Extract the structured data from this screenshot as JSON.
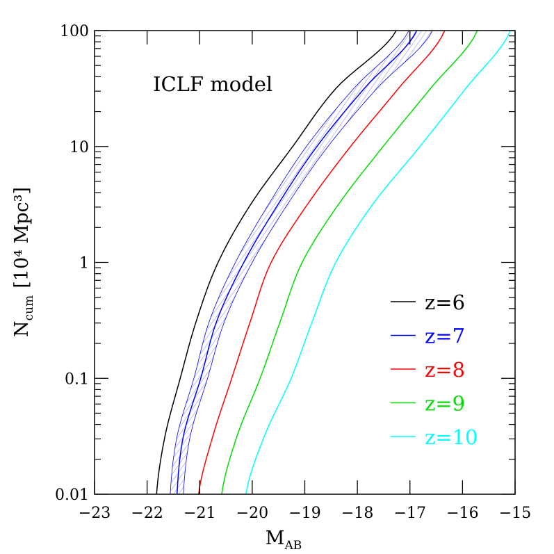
{
  "chart_data": {
    "type": "line",
    "title": "",
    "annotation": "ICLF model",
    "xlabel": "M",
    "xlabel_sub": "AB",
    "ylabel": "N",
    "ylabel_sub": "cum",
    "ylabel_units": "[10⁴ Mpc³]",
    "xlim": [
      -23,
      -15
    ],
    "ylim": [
      0.01,
      100
    ],
    "yscale": "log",
    "grid": false,
    "legend_position": "right",
    "x_ticks": [
      "−23",
      "−22",
      "−21",
      "−20",
      "−19",
      "−18",
      "−17",
      "−16",
      "−15"
    ],
    "y_ticks": [
      "0.01",
      "0.1",
      "1",
      "10",
      "100"
    ],
    "logN": [
      -2,
      -1.5,
      -1,
      -0.5,
      0,
      0.5,
      1,
      1.5,
      2
    ],
    "series": [
      {
        "name": "z=6",
        "color": "#000000",
        "M": [
          -21.82,
          -21.66,
          -21.37,
          -21.06,
          -20.65,
          -20.03,
          -19.23,
          -18.41,
          -17.26
        ]
      },
      {
        "name": "z=7",
        "color": "#0000ff",
        "M": [
          -21.43,
          -21.31,
          -20.98,
          -20.67,
          -20.16,
          -19.51,
          -18.77,
          -17.87,
          -16.87
        ],
        "band_lower": [
          -21.56,
          -21.43,
          -21.11,
          -20.81,
          -20.32,
          -19.69,
          -18.97,
          -18.07,
          -17.02
        ],
        "band_upper": [
          -21.31,
          -21.18,
          -20.85,
          -20.52,
          -20.0,
          -19.33,
          -18.56,
          -17.63,
          -16.57
        ]
      },
      {
        "name": "z=8",
        "color": "#ff0000",
        "M": [
          -21.02,
          -20.75,
          -20.39,
          -20.03,
          -19.64,
          -18.95,
          -18.13,
          -17.22,
          -16.34
        ]
      },
      {
        "name": "z=9",
        "color": "#00dd00",
        "M": [
          -20.58,
          -20.29,
          -19.85,
          -19.46,
          -19.05,
          -18.36,
          -17.51,
          -16.61,
          -15.72
        ]
      },
      {
        "name": "z=10",
        "color": "#00ffff",
        "M": [
          -20.12,
          -19.77,
          -19.26,
          -18.85,
          -18.41,
          -17.71,
          -16.81,
          -15.94,
          -15.09
        ]
      }
    ]
  }
}
